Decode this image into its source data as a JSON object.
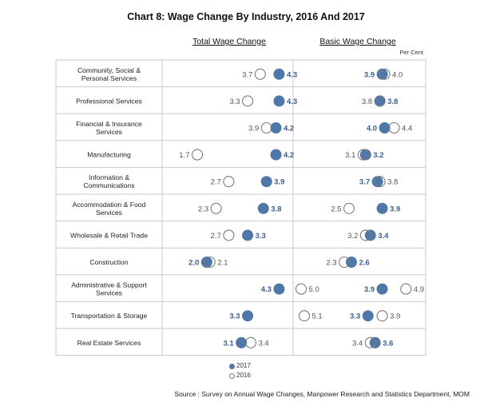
{
  "title": "Chart 8: Wage Change By Industry, 2016 And 2017",
  "unit_label": "Per Cent",
  "source": "Source : Survey on Annual Wage Changes, Manpower Research and Statistics Department, MOM",
  "colors": {
    "y2017": "#4f77a8",
    "y2016_stroke": "#7a7a7a",
    "grid": "#c8c8c8",
    "label_2017": "#3a5f8e",
    "label_2016": "#555555"
  },
  "chart_data": {
    "type": "dot-plot",
    "panels": [
      "Total Wage Change",
      "Basic Wage Change"
    ],
    "legend": [
      "2017",
      "2016"
    ],
    "categories": [
      [
        "Community, Social &",
        "Personal Services"
      ],
      [
        "Professional Services"
      ],
      [
        "Financial & Insurance",
        "Services"
      ],
      [
        "Manufacturing"
      ],
      [
        "Information &",
        "Communications"
      ],
      [
        "Accommodation & Food",
        "Services"
      ],
      [
        "Wholesale & Retail Trade"
      ],
      [
        "Construction"
      ],
      [
        "Administrative & Support",
        "Services"
      ],
      [
        "Transportation & Storage"
      ],
      [
        "Real Estate Services"
      ]
    ],
    "series": [
      {
        "name": "2017",
        "total": [
          4.3,
          4.3,
          4.2,
          4.2,
          3.9,
          3.8,
          3.3,
          2.0,
          4.3,
          3.3,
          3.1
        ],
        "basic": [
          3.9,
          3.8,
          4.0,
          3.2,
          3.7,
          3.9,
          3.4,
          2.6,
          3.9,
          3.3,
          3.6
        ]
      },
      {
        "name": "2016",
        "total": [
          3.7,
          3.3,
          3.9,
          1.7,
          2.7,
          2.3,
          2.7,
          2.1,
          5.0,
          5.1,
          3.4
        ],
        "basic": [
          4.0,
          3.8,
          4.4,
          3.1,
          3.8,
          2.5,
          3.2,
          2.3,
          4.9,
          3.9,
          3.4
        ]
      }
    ],
    "labels_2016": {
      "total": [
        "3.7",
        "3.3",
        "3.9",
        "1.7",
        "2.7",
        "2.3",
        "2.7",
        "2.1",
        "5.0",
        "5.1",
        "3.4"
      ],
      "basic": [
        "4.0",
        "3.8",
        "4.4",
        "3.1",
        "3.8",
        "2.5",
        "3.2",
        "2.3",
        "4.9",
        "3.9",
        "3.4"
      ]
    },
    "labels_2017": {
      "total": [
        "4.3",
        "4.3",
        "4.2",
        "4.2",
        "3.9",
        "3.8",
        "3.3",
        "2.0",
        "4.3",
        "3.3",
        "3.1"
      ],
      "basic": [
        "3.9",
        "3.8",
        "4.0",
        "3.2",
        "3.7",
        "3.9",
        "3.4",
        "2.6",
        "3.9",
        "3.3",
        "3.6"
      ]
    }
  }
}
